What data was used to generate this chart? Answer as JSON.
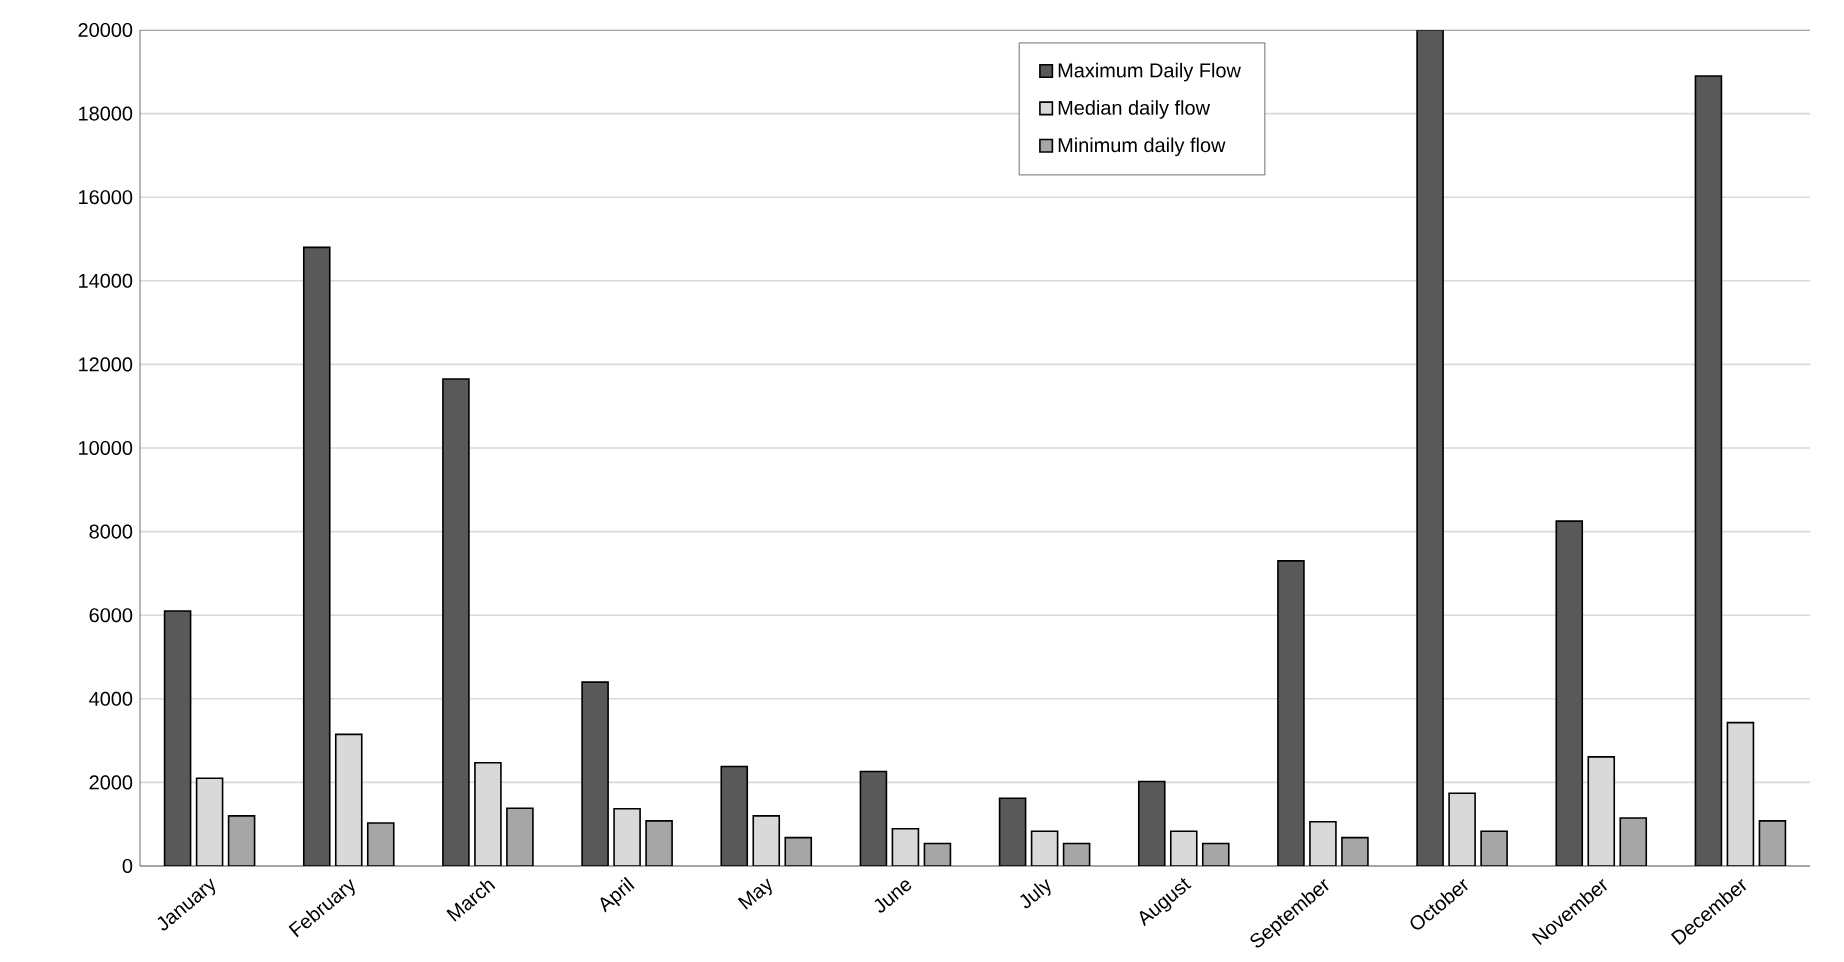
{
  "chart_data": {
    "type": "bar",
    "categories": [
      "January",
      "February",
      "March",
      "April",
      "May",
      "June",
      "July",
      "August",
      "September",
      "October",
      "November",
      "December"
    ],
    "series": [
      {
        "name": "Maximum Daily Flow",
        "color": "#595959",
        "values": [
          6100,
          14800,
          11650,
          4400,
          2380,
          2260,
          1620,
          2020,
          7300,
          20000,
          8250,
          18900
        ]
      },
      {
        "name": "Median daily flow",
        "color": "#d9d9d9",
        "values": [
          2100,
          3150,
          2470,
          1370,
          1200,
          890,
          830,
          830,
          1060,
          1740,
          2610,
          3430
        ]
      },
      {
        "name": "Minimum daily flow",
        "color": "#a6a6a6",
        "values": [
          1200,
          1030,
          1380,
          1080,
          680,
          540,
          540,
          540,
          680,
          830,
          1150,
          1080
        ]
      }
    ],
    "ylim": [
      0,
      20000
    ],
    "yticks": [
      0,
      2000,
      4000,
      6000,
      8000,
      10000,
      12000,
      14000,
      16000,
      18000,
      20000
    ],
    "grid": "y",
    "legend": "top"
  }
}
